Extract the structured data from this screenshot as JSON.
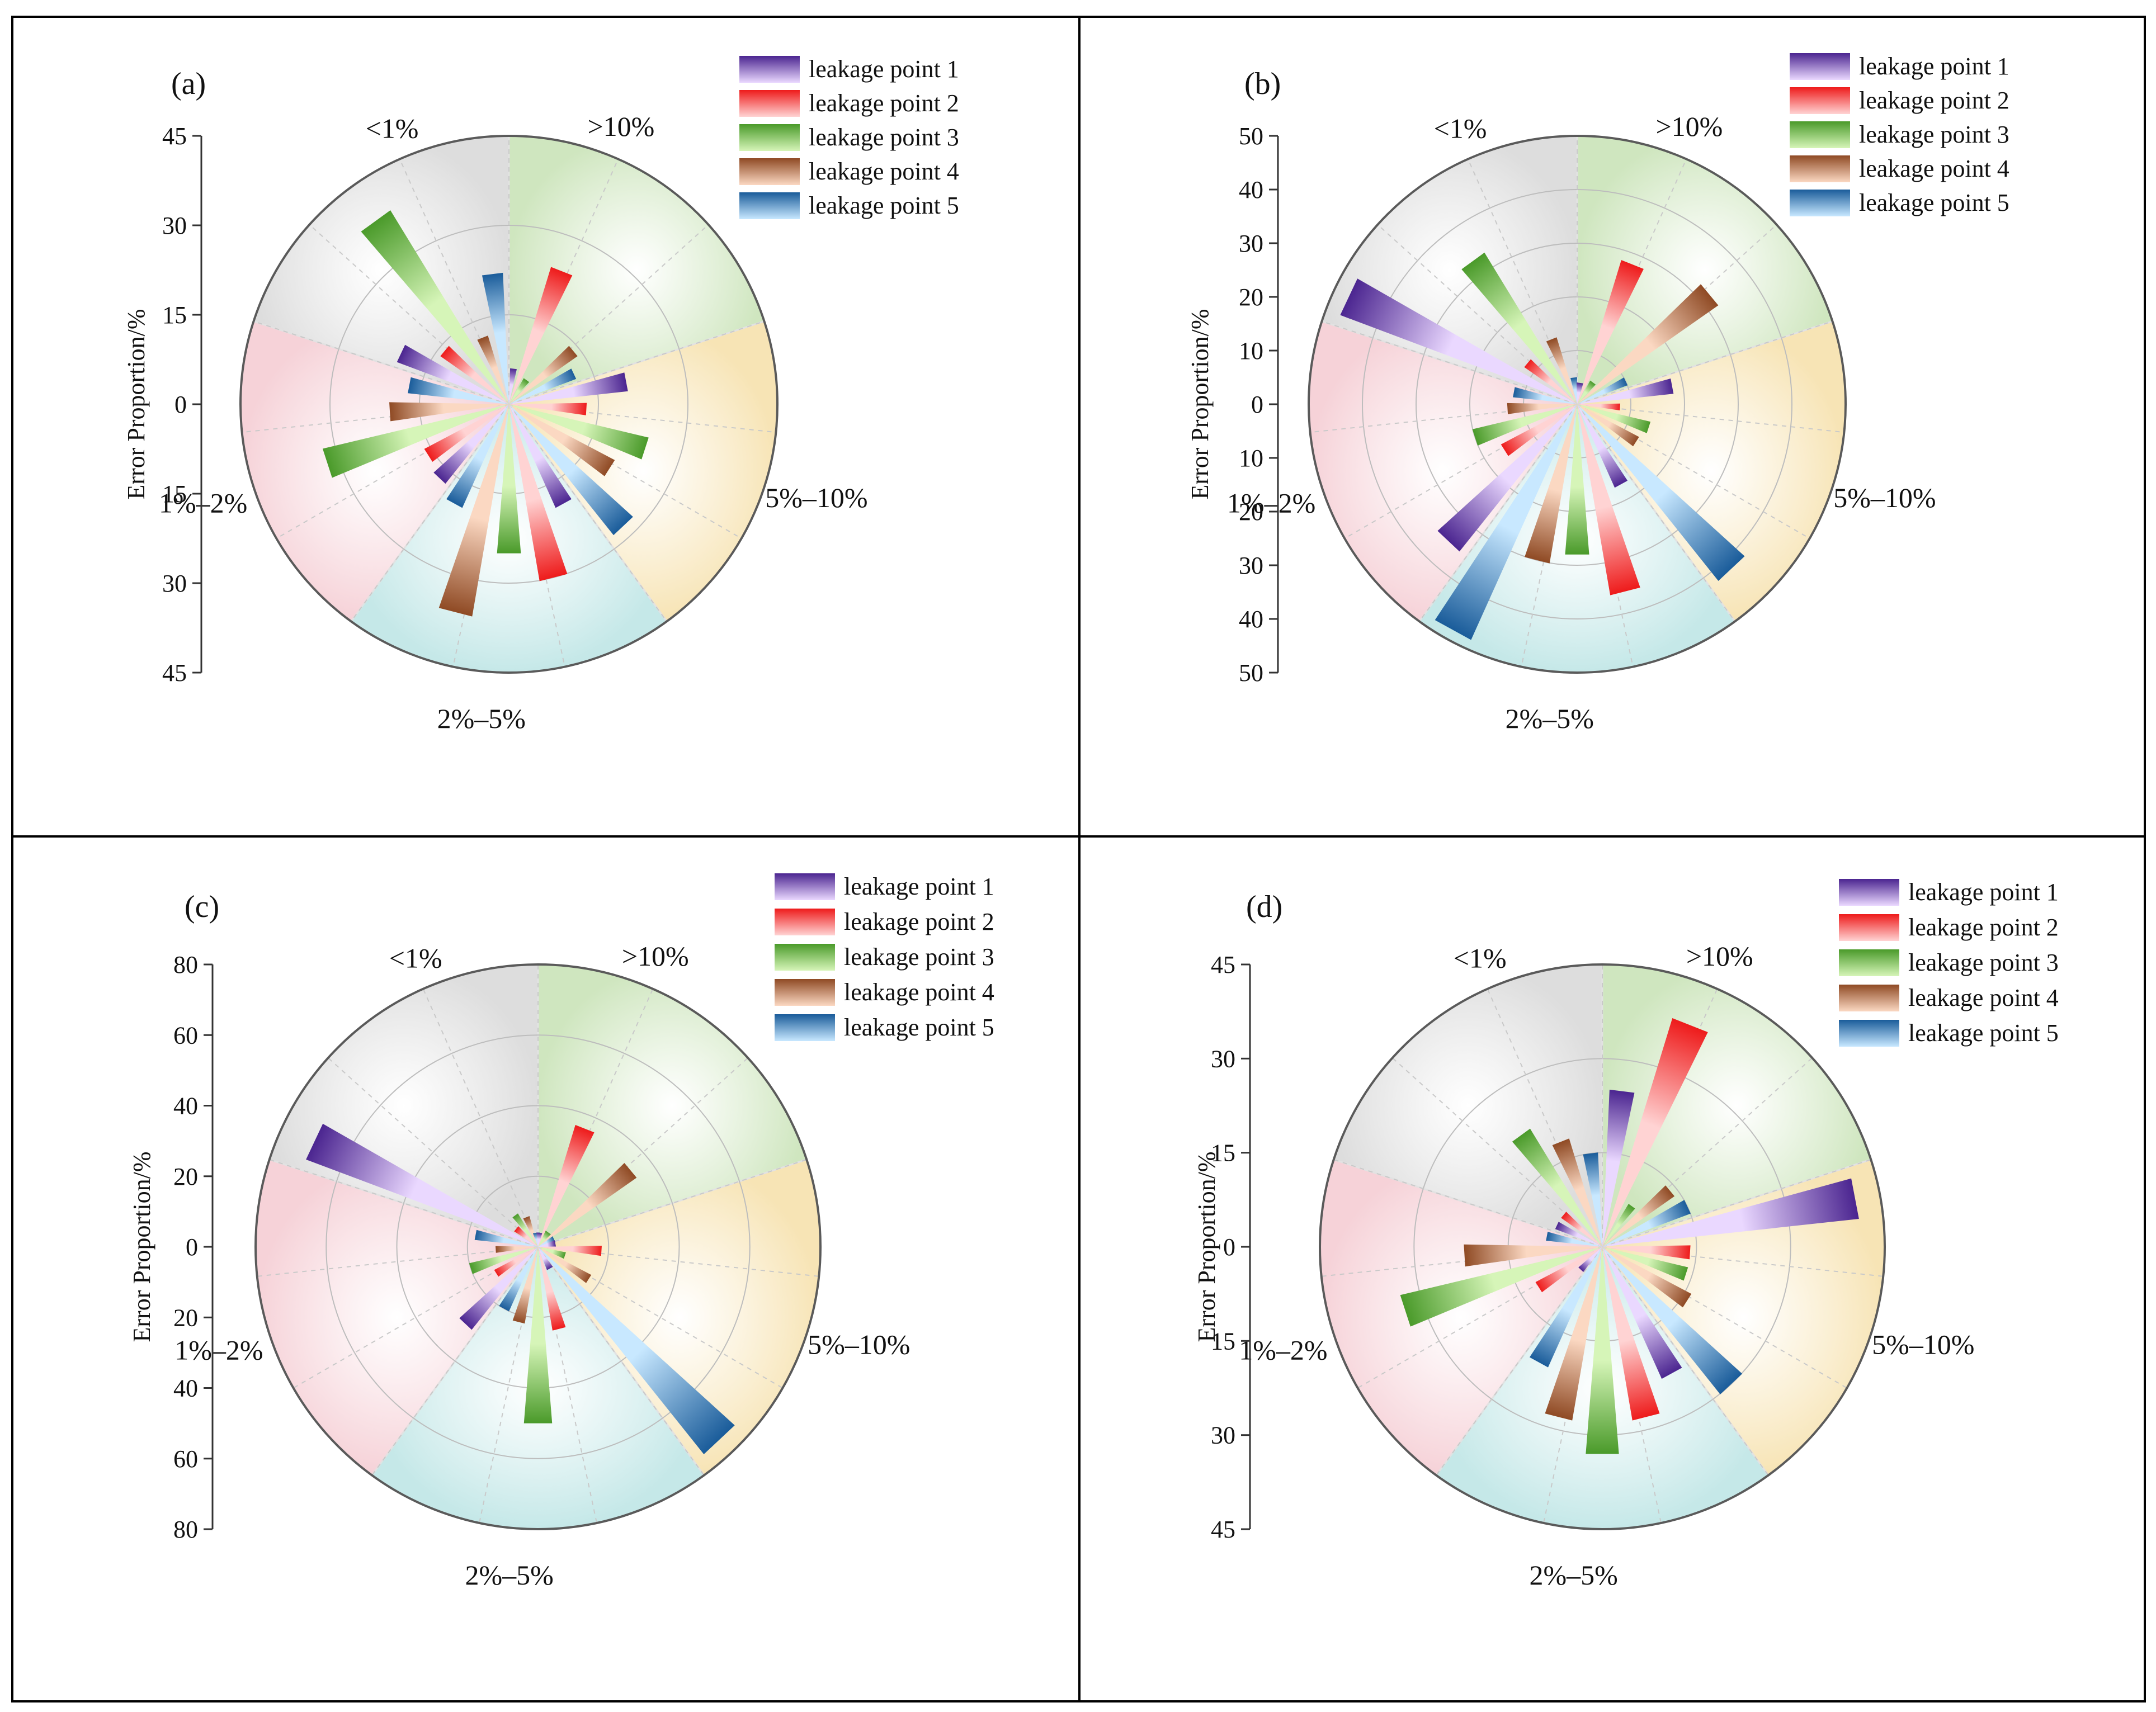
{
  "figure": {
    "sector_labels": [
      "<1%",
      ">10%",
      "5%–10%",
      "2%–5%",
      "1%–2%"
    ],
    "sector_colors": [
      "#dddddd",
      "#cfe6bf",
      "#f7e4b5",
      "#c5e8e8",
      "#f6d2d8"
    ],
    "series": [
      {
        "name": "leakage point 1",
        "dark": "#4b2590",
        "light": "#ead8ff"
      },
      {
        "name": "leakage point 2",
        "dark": "#ee1b1b",
        "light": "#ffd3d3"
      },
      {
        "name": "leakage point 3",
        "dark": "#4a9a2a",
        "light": "#d6f5b8"
      },
      {
        "name": "leakage point 4",
        "dark": "#8f4a24",
        "light": "#fbd8c2"
      },
      {
        "name": "leakage point 5",
        "dark": "#1a5c9a",
        "light": "#c8e8ff"
      }
    ]
  },
  "chart_data": [
    {
      "type": "polar-bar",
      "panel_label": "(a)",
      "ylabel": "Error Proportion/%",
      "rmax": 45,
      "ticks": [
        "45",
        "30",
        "15",
        "0",
        "15",
        "30",
        "45"
      ],
      "categories": [
        "<1%",
        ">10%",
        "5%–10%",
        "2%–5%",
        "1%–2%"
      ],
      "series": [
        {
          "name": "leakage point 1",
          "values": [
            20,
            6,
            20,
            19,
            17
          ]
        },
        {
          "name": "leakage point 2",
          "values": [
            14,
            24,
            13,
            30,
            16
          ]
        },
        {
          "name": "leakage point 3",
          "values": [
            38,
            5,
            24,
            25,
            32
          ]
        },
        {
          "name": "leakage point 4",
          "values": [
            12,
            14,
            20,
            36,
            20
          ]
        },
        {
          "name": "leakage point 5",
          "values": [
            22,
            12,
            28,
            19,
            17
          ]
        }
      ]
    },
    {
      "type": "polar-bar",
      "panel_label": "(b)",
      "ylabel": "Error Proportion/%",
      "rmax": 50,
      "ticks": [
        "50",
        "40",
        "30",
        "20",
        "10",
        "0",
        "10",
        "20",
        "30",
        "40",
        "50"
      ],
      "categories": [
        "<1%",
        ">10%",
        "5%–10%",
        "2%–5%",
        "1%–2%"
      ],
      "series": [
        {
          "name": "leakage point 1",
          "values": [
            47,
            4,
            18,
            17,
            35
          ]
        },
        {
          "name": "leakage point 2",
          "values": [
            12,
            28,
            8,
            36,
            16
          ]
        },
        {
          "name": "leakage point 3",
          "values": [
            33,
            5,
            14,
            28,
            20
          ]
        },
        {
          "name": "leakage point 4",
          "values": [
            13,
            32,
            13,
            30,
            13
          ]
        },
        {
          "name": "leakage point 5",
          "values": [
            5,
            10,
            42,
            48,
            12
          ]
        }
      ]
    },
    {
      "type": "polar-bar",
      "panel_label": "(c)",
      "ylabel": "Error Proportion/%",
      "rmax": 80,
      "ticks": [
        "80",
        "60",
        "40",
        "20",
        "0",
        "20",
        "40",
        "60",
        "80"
      ],
      "categories": [
        "<1%",
        ">10%",
        "5%–10%",
        "2%–5%",
        "1%–2%"
      ],
      "series": [
        {
          "name": "leakage point 1",
          "values": [
            70,
            4,
            5,
            7,
            30
          ]
        },
        {
          "name": "leakage point 2",
          "values": [
            8,
            36,
            18,
            24,
            14
          ]
        },
        {
          "name": "leakage point 3",
          "values": [
            11,
            5,
            8,
            50,
            20
          ]
        },
        {
          "name": "leakage point 4",
          "values": [
            9,
            34,
            17,
            22,
            12
          ]
        },
        {
          "name": "leakage point 5",
          "values": [
            4,
            5,
            75,
            20,
            18
          ]
        }
      ]
    },
    {
      "type": "polar-bar",
      "panel_label": "(d)",
      "ylabel": "Error Proportion/%",
      "rmax": 45,
      "ticks": [
        "45",
        "30",
        "15",
        "0",
        "15",
        "30",
        "45"
      ],
      "categories": [
        "<1%",
        ">10%",
        "5%–10%",
        "2%–5%",
        "1%–2%"
      ],
      "series": [
        {
          "name": "leakage point 1",
          "values": [
            8,
            25,
            41,
            23,
            5
          ]
        },
        {
          "name": "leakage point 2",
          "values": [
            8,
            38,
            14,
            28,
            12
          ]
        },
        {
          "name": "leakage point 3",
          "values": [
            22,
            8,
            14,
            33,
            33
          ]
        },
        {
          "name": "leakage point 4",
          "values": [
            18,
            14,
            16,
            28,
            22
          ]
        },
        {
          "name": "leakage point 5",
          "values": [
            15,
            15,
            30,
            21,
            9
          ]
        }
      ]
    }
  ]
}
